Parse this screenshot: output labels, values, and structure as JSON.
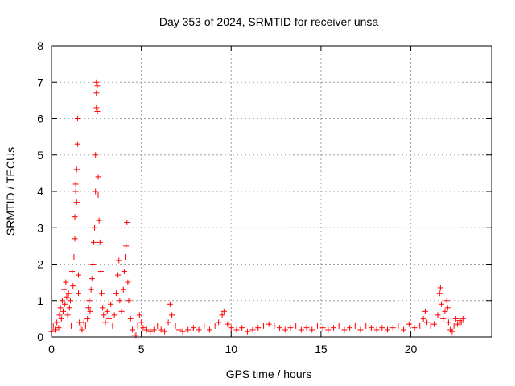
{
  "chart_data": {
    "type": "scatter",
    "title": "Day 353 of 2024, SRMTID for receiver unsa",
    "xlabel": "GPS time / hours",
    "ylabel": "SRMTID / TECUs",
    "xlim": [
      0,
      24.5
    ],
    "ylim": [
      0,
      8
    ],
    "xticks": [
      0,
      5,
      10,
      15,
      20
    ],
    "xtick_labels": [
      "0",
      "5",
      "10",
      "15",
      "20"
    ],
    "yticks": [
      0,
      1,
      2,
      3,
      4,
      5,
      6,
      7,
      8
    ],
    "ytick_labels": [
      "0",
      "1",
      "2",
      "3",
      "4",
      "5",
      "6",
      "7",
      "8"
    ],
    "grid": true,
    "marker": "+",
    "series": [
      {
        "name": "unsa",
        "color": "#ff0000",
        "points": [
          [
            0.0,
            0.15
          ],
          [
            0.1,
            0.3
          ],
          [
            0.2,
            0.2
          ],
          [
            0.3,
            0.4
          ],
          [
            0.4,
            0.25
          ],
          [
            0.45,
            0.6
          ],
          [
            0.5,
            0.8
          ],
          [
            0.55,
            0.5
          ],
          [
            0.6,
            1.0
          ],
          [
            0.65,
            0.7
          ],
          [
            0.7,
            1.3
          ],
          [
            0.75,
            0.9
          ],
          [
            0.8,
            1.5
          ],
          [
            0.85,
            1.1
          ],
          [
            0.9,
            0.6
          ],
          [
            0.95,
            1.2
          ],
          [
            1.0,
            0.8
          ],
          [
            1.05,
            1.0
          ],
          [
            1.1,
            0.3
          ],
          [
            1.15,
            1.8
          ],
          [
            1.2,
            1.4
          ],
          [
            1.25,
            2.2
          ],
          [
            1.3,
            2.7
          ],
          [
            1.3,
            3.3
          ],
          [
            1.35,
            4.0
          ],
          [
            1.35,
            4.2
          ],
          [
            1.4,
            3.7
          ],
          [
            1.4,
            4.6
          ],
          [
            1.45,
            5.3
          ],
          [
            1.45,
            6.0
          ],
          [
            1.5,
            1.7
          ],
          [
            1.5,
            1.2
          ],
          [
            1.55,
            0.4
          ],
          [
            1.6,
            0.3
          ],
          [
            1.7,
            0.2
          ],
          [
            1.8,
            0.4
          ],
          [
            1.9,
            0.3
          ],
          [
            2.0,
            0.5
          ],
          [
            2.05,
            0.8
          ],
          [
            2.1,
            1.0
          ],
          [
            2.15,
            0.7
          ],
          [
            2.2,
            1.3
          ],
          [
            2.25,
            1.6
          ],
          [
            2.3,
            2.0
          ],
          [
            2.35,
            2.6
          ],
          [
            2.4,
            3.0
          ],
          [
            2.45,
            4.0
          ],
          [
            2.45,
            5.0
          ],
          [
            2.5,
            6.3
          ],
          [
            2.5,
            6.7
          ],
          [
            2.5,
            7.0
          ],
          [
            2.55,
            6.9
          ],
          [
            2.55,
            6.2
          ],
          [
            2.6,
            4.4
          ],
          [
            2.6,
            3.9
          ],
          [
            2.65,
            3.2
          ],
          [
            2.7,
            2.6
          ],
          [
            2.75,
            1.8
          ],
          [
            2.8,
            1.2
          ],
          [
            2.85,
            0.8
          ],
          [
            2.9,
            0.6
          ],
          [
            3.0,
            0.4
          ],
          [
            3.1,
            0.7
          ],
          [
            3.2,
            0.5
          ],
          [
            3.3,
            0.9
          ],
          [
            3.4,
            0.3
          ],
          [
            3.5,
            0.6
          ],
          [
            3.6,
            1.2
          ],
          [
            3.7,
            1.7
          ],
          [
            3.75,
            2.1
          ],
          [
            3.8,
            1.0
          ],
          [
            3.9,
            0.7
          ],
          [
            4.0,
            1.3
          ],
          [
            4.05,
            1.8
          ],
          [
            4.1,
            2.2
          ],
          [
            4.15,
            2.5
          ],
          [
            4.2,
            3.15
          ],
          [
            4.25,
            1.5
          ],
          [
            4.3,
            1.0
          ],
          [
            4.4,
            0.5
          ],
          [
            4.5,
            0.2
          ],
          [
            4.6,
            0.05
          ],
          [
            4.7,
            0.05
          ],
          [
            4.8,
            0.3
          ],
          [
            4.9,
            0.6
          ],
          [
            5.0,
            0.4
          ],
          [
            5.1,
            0.25
          ],
          [
            5.3,
            0.2
          ],
          [
            5.5,
            0.15
          ],
          [
            5.7,
            0.2
          ],
          [
            5.9,
            0.3
          ],
          [
            6.1,
            0.2
          ],
          [
            6.3,
            0.15
          ],
          [
            6.5,
            0.4
          ],
          [
            6.6,
            0.9
          ],
          [
            6.7,
            0.6
          ],
          [
            6.9,
            0.3
          ],
          [
            7.1,
            0.2
          ],
          [
            7.3,
            0.15
          ],
          [
            7.6,
            0.2
          ],
          [
            7.9,
            0.25
          ],
          [
            8.2,
            0.2
          ],
          [
            8.5,
            0.3
          ],
          [
            8.8,
            0.2
          ],
          [
            9.1,
            0.3
          ],
          [
            9.3,
            0.4
          ],
          [
            9.5,
            0.6
          ],
          [
            9.6,
            0.7
          ],
          [
            9.8,
            0.35
          ],
          [
            10.0,
            0.25
          ],
          [
            10.3,
            0.2
          ],
          [
            10.6,
            0.25
          ],
          [
            10.9,
            0.15
          ],
          [
            11.2,
            0.2
          ],
          [
            11.5,
            0.25
          ],
          [
            11.8,
            0.3
          ],
          [
            12.1,
            0.35
          ],
          [
            12.4,
            0.3
          ],
          [
            12.7,
            0.25
          ],
          [
            13.0,
            0.2
          ],
          [
            13.3,
            0.25
          ],
          [
            13.6,
            0.3
          ],
          [
            13.9,
            0.2
          ],
          [
            14.2,
            0.25
          ],
          [
            14.5,
            0.2
          ],
          [
            14.8,
            0.3
          ],
          [
            15.1,
            0.25
          ],
          [
            15.4,
            0.2
          ],
          [
            15.7,
            0.25
          ],
          [
            16.0,
            0.3
          ],
          [
            16.3,
            0.2
          ],
          [
            16.6,
            0.25
          ],
          [
            16.9,
            0.3
          ],
          [
            17.2,
            0.2
          ],
          [
            17.5,
            0.3
          ],
          [
            17.8,
            0.25
          ],
          [
            18.1,
            0.2
          ],
          [
            18.4,
            0.25
          ],
          [
            18.7,
            0.2
          ],
          [
            19.0,
            0.25
          ],
          [
            19.3,
            0.3
          ],
          [
            19.6,
            0.2
          ],
          [
            19.9,
            0.35
          ],
          [
            20.2,
            0.25
          ],
          [
            20.5,
            0.3
          ],
          [
            20.7,
            0.5
          ],
          [
            20.8,
            0.7
          ],
          [
            20.9,
            0.4
          ],
          [
            21.1,
            0.3
          ],
          [
            21.3,
            0.35
          ],
          [
            21.5,
            0.6
          ],
          [
            21.6,
            1.2
          ],
          [
            21.65,
            1.35
          ],
          [
            21.7,
            0.9
          ],
          [
            21.8,
            0.5
          ],
          [
            21.9,
            0.7
          ],
          [
            22.0,
            1.0
          ],
          [
            22.05,
            0.8
          ],
          [
            22.1,
            0.4
          ],
          [
            22.2,
            0.2
          ],
          [
            22.3,
            0.15
          ],
          [
            22.4,
            0.3
          ],
          [
            22.5,
            0.5
          ],
          [
            22.6,
            0.35
          ],
          [
            22.7,
            0.45
          ],
          [
            22.8,
            0.4
          ],
          [
            22.9,
            0.5
          ]
        ]
      }
    ]
  }
}
